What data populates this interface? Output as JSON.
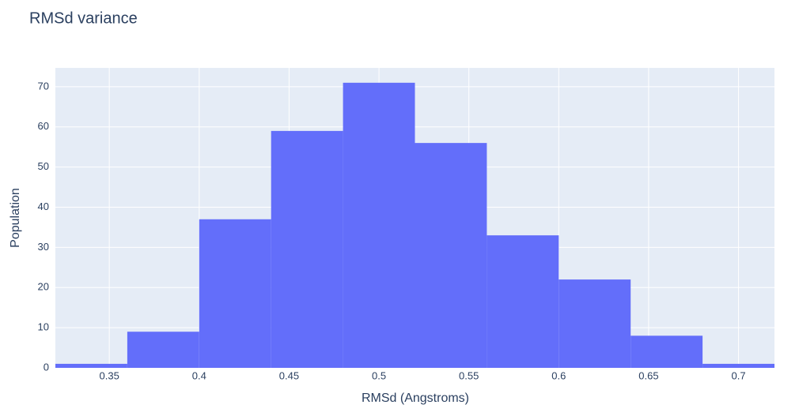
{
  "chart_data": {
    "type": "histogram",
    "title": "RMSd variance",
    "x_label": "RMSd (Angstroms)",
    "y_label": "Population",
    "bins": [
      0.32,
      0.36,
      0.4,
      0.44,
      0.48,
      0.52,
      0.56,
      0.6,
      0.64,
      0.68,
      0.72
    ],
    "values": [
      1,
      9,
      37,
      59,
      71,
      56,
      33,
      22,
      8,
      1
    ],
    "color": "#636efa",
    "xlim": [
      0.32,
      0.72
    ],
    "xticks": [
      0.35,
      0.4,
      0.45,
      0.5,
      0.55,
      0.6,
      0.65,
      0.7
    ],
    "ylim": [
      0,
      74.7
    ],
    "yticks": [
      0,
      10,
      20,
      30,
      40,
      50,
      60,
      70
    ],
    "grid": true
  }
}
